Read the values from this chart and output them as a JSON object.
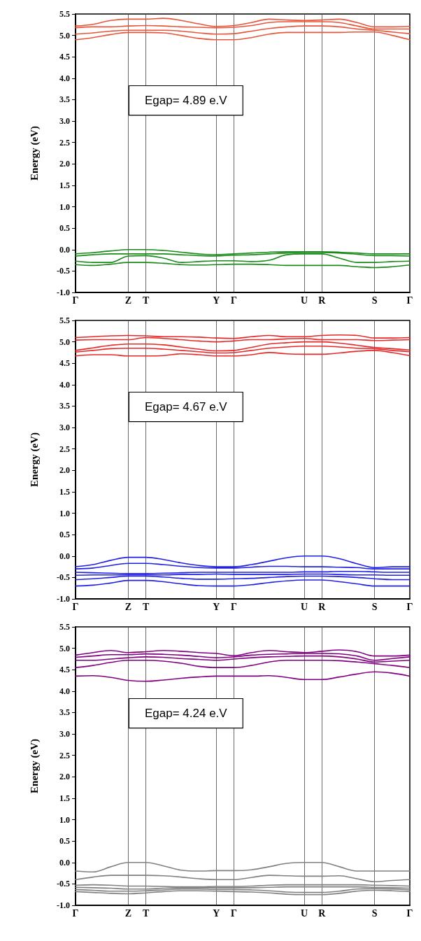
{
  "chart_data": [
    {
      "type": "line",
      "ylabel": "Energy (eV)",
      "annotations": [
        "Egap= 4.89 e.V"
      ],
      "grid": "x",
      "marker": "none",
      "line_style": "solid",
      "ylim": [
        -1,
        5.5
      ],
      "categories": [
        "Γ",
        null,
        null,
        "Z",
        "T",
        null,
        null,
        null,
        "Y",
        "Γ",
        null,
        null,
        null,
        "U",
        "R",
        null,
        null,
        "S",
        null,
        "Γ"
      ],
      "yticks": [
        {
          "value": -1,
          "label": "-1.0"
        },
        {
          "value": -0.5,
          "label": "-0.5"
        },
        {
          "value": 0,
          "label": "0.0"
        },
        {
          "value": 0.5,
          "label": "0.5"
        },
        {
          "value": 1,
          "label": "1.0"
        },
        {
          "value": 1.5,
          "label": "1.5"
        },
        {
          "value": 2,
          "label": "2.0"
        },
        {
          "value": 2.5,
          "label": "2.5"
        },
        {
          "value": 3,
          "label": "3.0"
        },
        {
          "value": 3.5,
          "label": "3.5"
        },
        {
          "value": 4,
          "label": "4.0"
        },
        {
          "value": 4.5,
          "label": "4.5"
        },
        {
          "value": 5,
          "label": "5.0"
        },
        {
          "value": 5.5,
          "label": "5.5"
        }
      ],
      "series": [
        {
          "color": "#e8553a",
          "values": [
            4.9,
            4.95,
            5.02,
            5.07,
            5.07,
            5.06,
            5.0,
            4.93,
            4.9,
            4.9,
            4.95,
            5.03,
            5.07,
            5.07,
            5.07,
            5.07,
            5.08,
            5.08,
            5.0,
            4.9
          ]
        },
        {
          "color": "#e8553a",
          "values": [
            5.03,
            5.06,
            5.1,
            5.12,
            5.12,
            5.12,
            5.1,
            5.06,
            5.03,
            5.04,
            5.1,
            5.16,
            5.2,
            5.22,
            5.22,
            5.2,
            5.15,
            5.12,
            5.08,
            5.04
          ]
        },
        {
          "color": "#e8553a",
          "values": [
            5.18,
            5.2,
            5.2,
            5.22,
            5.23,
            5.22,
            5.2,
            5.19,
            5.18,
            5.19,
            5.23,
            5.3,
            5.32,
            5.32,
            5.32,
            5.3,
            5.22,
            5.15,
            5.15,
            5.15
          ]
        },
        {
          "color": "#e8553a",
          "values": [
            5.22,
            5.26,
            5.35,
            5.38,
            5.38,
            5.4,
            5.35,
            5.27,
            5.21,
            5.23,
            5.3,
            5.38,
            5.36,
            5.35,
            5.36,
            5.38,
            5.3,
            5.2,
            5.2,
            5.21
          ]
        },
        {
          "color": "#1a8a1a",
          "values": [
            -0.1,
            -0.07,
            -0.03,
            0,
            0,
            -0.02,
            -0.06,
            -0.1,
            -0.12,
            -0.1,
            -0.08,
            -0.06,
            -0.05,
            -0.05,
            -0.05,
            -0.06,
            -0.08,
            -0.1,
            -0.1,
            -0.1
          ]
        },
        {
          "color": "#1a8a1a",
          "values": [
            -0.15,
            -0.12,
            -0.1,
            -0.1,
            -0.1,
            -0.1,
            -0.12,
            -0.14,
            -0.15,
            -0.13,
            -0.12,
            -0.1,
            -0.08,
            -0.07,
            -0.07,
            -0.08,
            -0.11,
            -0.14,
            -0.14,
            -0.15
          ]
        },
        {
          "color": "#1a8a1a",
          "values": [
            -0.27,
            -0.3,
            -0.3,
            -0.15,
            -0.14,
            -0.2,
            -0.3,
            -0.28,
            -0.26,
            -0.26,
            -0.28,
            -0.25,
            -0.12,
            -0.1,
            -0.1,
            -0.2,
            -0.3,
            -0.3,
            -0.28,
            -0.27
          ]
        },
        {
          "color": "#1a8a1a",
          "values": [
            -0.35,
            -0.37,
            -0.34,
            -0.3,
            -0.3,
            -0.32,
            -0.35,
            -0.36,
            -0.35,
            -0.34,
            -0.34,
            -0.35,
            -0.37,
            -0.37,
            -0.37,
            -0.37,
            -0.4,
            -0.42,
            -0.4,
            -0.36
          ]
        }
      ]
    },
    {
      "type": "line",
      "ylabel": "Energy (eV)",
      "annotations": [
        "Egap= 4.67 e.V"
      ],
      "grid": "x",
      "marker": "none",
      "line_style": "solid",
      "ylim": [
        -1,
        5.5
      ],
      "categories": [
        "Γ",
        null,
        null,
        "Z",
        "T",
        null,
        null,
        null,
        "Y",
        "Γ",
        null,
        null,
        null,
        "U",
        "R",
        null,
        null,
        "S",
        null,
        "Γ"
      ],
      "yticks": [
        {
          "value": -1,
          "label": "-1.0"
        },
        {
          "value": -0.5,
          "label": "-0.5"
        },
        {
          "value": 0,
          "label": "0.0"
        },
        {
          "value": 0.5,
          "label": "0.5"
        },
        {
          "value": 1,
          "label": "1.0"
        },
        {
          "value": 1.5,
          "label": "1.5"
        },
        {
          "value": 2,
          "label": "2.0"
        },
        {
          "value": 2.5,
          "label": "2.5"
        },
        {
          "value": 3,
          "label": "3.0"
        },
        {
          "value": 3.5,
          "label": "3.5"
        },
        {
          "value": 4,
          "label": "4.0"
        },
        {
          "value": 4.5,
          "label": "4.5"
        },
        {
          "value": 5,
          "label": "5.0"
        },
        {
          "value": 5.5,
          "label": "5.5"
        }
      ],
      "series": [
        {
          "color": "#e82828",
          "values": [
            4.67,
            4.7,
            4.7,
            4.67,
            4.67,
            4.68,
            4.72,
            4.7,
            4.67,
            4.67,
            4.7,
            4.75,
            4.72,
            4.71,
            4.71,
            4.74,
            4.78,
            4.8,
            4.75,
            4.68
          ]
        },
        {
          "color": "#e82828",
          "values": [
            4.76,
            4.8,
            4.84,
            4.85,
            4.85,
            4.83,
            4.8,
            4.77,
            4.74,
            4.75,
            4.8,
            4.85,
            4.88,
            4.9,
            4.9,
            4.88,
            4.85,
            4.84,
            4.8,
            4.77
          ]
        },
        {
          "color": "#e82828",
          "values": [
            4.8,
            4.86,
            4.92,
            4.95,
            4.95,
            4.93,
            4.88,
            4.83,
            4.79,
            4.8,
            4.87,
            4.95,
            4.98,
            5.0,
            5.0,
            4.97,
            4.92,
            4.87,
            4.84,
            4.81
          ]
        },
        {
          "color": "#e82828",
          "values": [
            5.04,
            5.05,
            5.05,
            5.05,
            5.1,
            5.08,
            5.05,
            5.02,
            5.0,
            5.02,
            5.05,
            5.05,
            5.07,
            5.08,
            5.05,
            5.05,
            5.05,
            5.03,
            5.04,
            5.05
          ]
        },
        {
          "color": "#e82828",
          "values": [
            5.1,
            5.12,
            5.14,
            5.15,
            5.14,
            5.12,
            5.12,
            5.11,
            5.09,
            5.08,
            5.12,
            5.15,
            5.12,
            5.12,
            5.15,
            5.16,
            5.15,
            5.09,
            5.09,
            5.1
          ]
        },
        {
          "color": "#1f1fe8",
          "values": [
            -0.25,
            -0.2,
            -0.1,
            -0.03,
            -0.03,
            -0.08,
            -0.16,
            -0.22,
            -0.25,
            -0.25,
            -0.2,
            -0.12,
            -0.04,
            0,
            0,
            -0.06,
            -0.18,
            -0.27,
            -0.25,
            -0.25
          ]
        },
        {
          "color": "#1f1fe8",
          "values": [
            -0.3,
            -0.28,
            -0.22,
            -0.17,
            -0.17,
            -0.2,
            -0.24,
            -0.27,
            -0.28,
            -0.28,
            -0.26,
            -0.24,
            -0.24,
            -0.25,
            -0.25,
            -0.26,
            -0.27,
            -0.3,
            -0.3,
            -0.3
          ]
        },
        {
          "color": "#1f1fe8",
          "values": [
            -0.38,
            -0.39,
            -0.4,
            -0.41,
            -0.41,
            -0.4,
            -0.39,
            -0.38,
            -0.38,
            -0.38,
            -0.38,
            -0.38,
            -0.38,
            -0.37,
            -0.37,
            -0.36,
            -0.36,
            -0.37,
            -0.38,
            -0.38
          ]
        },
        {
          "color": "#1f1fe8",
          "values": [
            -0.45,
            -0.44,
            -0.44,
            -0.44,
            -0.44,
            -0.44,
            -0.43,
            -0.43,
            -0.42,
            -0.43,
            -0.43,
            -0.43,
            -0.43,
            -0.42,
            -0.42,
            -0.43,
            -0.44,
            -0.44,
            -0.45,
            -0.45
          ]
        },
        {
          "color": "#1f1fe8",
          "values": [
            -0.55,
            -0.53,
            -0.5,
            -0.47,
            -0.47,
            -0.49,
            -0.52,
            -0.54,
            -0.54,
            -0.53,
            -0.52,
            -0.5,
            -0.48,
            -0.47,
            -0.47,
            -0.48,
            -0.5,
            -0.53,
            -0.55,
            -0.55
          ]
        },
        {
          "color": "#1f1fe8",
          "values": [
            -0.7,
            -0.68,
            -0.63,
            -0.57,
            -0.57,
            -0.6,
            -0.65,
            -0.69,
            -0.7,
            -0.7,
            -0.67,
            -0.62,
            -0.58,
            -0.56,
            -0.56,
            -0.6,
            -0.65,
            -0.7,
            -0.7,
            -0.7
          ]
        }
      ]
    },
    {
      "type": "line",
      "ylabel": "Energy (eV)",
      "annotations": [
        "Egap= 4.24 e.V"
      ],
      "grid": "x",
      "marker": "none",
      "line_style": "solid",
      "ylim": [
        -1,
        5.5
      ],
      "categories": [
        "Γ",
        null,
        null,
        "Z",
        "T",
        null,
        null,
        null,
        "Y",
        "Γ",
        null,
        null,
        null,
        "U",
        "R",
        null,
        null,
        "S",
        null,
        "Γ"
      ],
      "yticks": [
        {
          "value": -1,
          "label": "-1.0"
        },
        {
          "value": -0.5,
          "label": "-0.5"
        },
        {
          "value": 0,
          "label": "0.0"
        },
        {
          "value": 0.5,
          "label": "0.5"
        },
        {
          "value": 1,
          "label": "1.0"
        },
        {
          "value": 1.5,
          "label": "1.5"
        },
        {
          "value": 2,
          "label": "2.0"
        },
        {
          "value": 2.5,
          "label": "2.5"
        },
        {
          "value": 3,
          "label": "3.0"
        },
        {
          "value": 3.5,
          "label": "3.5"
        },
        {
          "value": 4,
          "label": "4.0"
        },
        {
          "value": 4.5,
          "label": "4.5"
        },
        {
          "value": 5,
          "label": "5.0"
        },
        {
          "value": 5.5,
          "label": "5.5"
        }
      ],
      "series": [
        {
          "color": "#800080",
          "values": [
            4.35,
            4.36,
            4.32,
            4.25,
            4.23,
            4.26,
            4.3,
            4.33,
            4.35,
            4.35,
            4.35,
            4.36,
            4.32,
            4.27,
            4.27,
            4.33,
            4.4,
            4.45,
            4.42,
            4.35
          ]
        },
        {
          "color": "#800080",
          "values": [
            4.55,
            4.6,
            4.67,
            4.72,
            4.72,
            4.7,
            4.65,
            4.58,
            4.55,
            4.55,
            4.6,
            4.68,
            4.72,
            4.72,
            4.72,
            4.71,
            4.68,
            4.64,
            4.6,
            4.55
          ]
        },
        {
          "color": "#800080",
          "values": [
            4.72,
            4.72,
            4.75,
            4.78,
            4.8,
            4.79,
            4.76,
            4.74,
            4.72,
            4.75,
            4.78,
            4.8,
            4.81,
            4.82,
            4.82,
            4.8,
            4.75,
            4.68,
            4.7,
            4.72
          ]
        },
        {
          "color": "#800080",
          "values": [
            4.79,
            4.82,
            4.85,
            4.85,
            4.87,
            4.86,
            4.84,
            4.81,
            4.78,
            4.8,
            4.84,
            4.86,
            4.87,
            4.88,
            4.88,
            4.87,
            4.82,
            4.72,
            4.76,
            4.8
          ]
        },
        {
          "color": "#800080",
          "values": [
            4.84,
            4.9,
            4.95,
            4.9,
            4.92,
            4.95,
            4.93,
            4.9,
            4.88,
            4.83,
            4.9,
            4.95,
            4.92,
            4.9,
            4.93,
            4.96,
            4.92,
            4.82,
            4.82,
            4.84
          ]
        },
        {
          "color": "#808080",
          "values": [
            -0.2,
            -0.22,
            -0.1,
            0,
            0,
            -0.08,
            -0.18,
            -0.2,
            -0.19,
            -0.19,
            -0.17,
            -0.1,
            -0.02,
            0,
            0,
            -0.1,
            -0.2,
            -0.2,
            -0.2,
            -0.2
          ]
        },
        {
          "color": "#808080",
          "values": [
            -0.4,
            -0.34,
            -0.3,
            -0.3,
            -0.3,
            -0.31,
            -0.34,
            -0.38,
            -0.4,
            -0.4,
            -0.35,
            -0.3,
            -0.31,
            -0.32,
            -0.32,
            -0.31,
            -0.38,
            -0.45,
            -0.42,
            -0.4
          ]
        },
        {
          "color": "#808080",
          "values": [
            -0.53,
            -0.52,
            -0.53,
            -0.55,
            -0.55,
            -0.56,
            -0.57,
            -0.57,
            -0.56,
            -0.56,
            -0.55,
            -0.53,
            -0.52,
            -0.52,
            -0.52,
            -0.52,
            -0.52,
            -0.53,
            -0.54,
            -0.55
          ]
        },
        {
          "color": "#808080",
          "values": [
            -0.58,
            -0.59,
            -0.6,
            -0.62,
            -0.62,
            -0.6,
            -0.59,
            -0.59,
            -0.59,
            -0.59,
            -0.59,
            -0.58,
            -0.57,
            -0.57,
            -0.57,
            -0.57,
            -0.57,
            -0.58,
            -0.59,
            -0.6
          ]
        },
        {
          "color": "#808080",
          "values": [
            -0.63,
            -0.65,
            -0.67,
            -0.67,
            -0.66,
            -0.64,
            -0.62,
            -0.62,
            -0.63,
            -0.63,
            -0.64,
            -0.66,
            -0.69,
            -0.7,
            -0.7,
            -0.67,
            -0.62,
            -0.61,
            -0.62,
            -0.64
          ]
        },
        {
          "color": "#808080",
          "values": [
            -0.68,
            -0.7,
            -0.72,
            -0.73,
            -0.71,
            -0.68,
            -0.66,
            -0.66,
            -0.67,
            -0.68,
            -0.69,
            -0.71,
            -0.74,
            -0.75,
            -0.75,
            -0.72,
            -0.67,
            -0.65,
            -0.66,
            -0.68
          ]
        }
      ]
    }
  ]
}
